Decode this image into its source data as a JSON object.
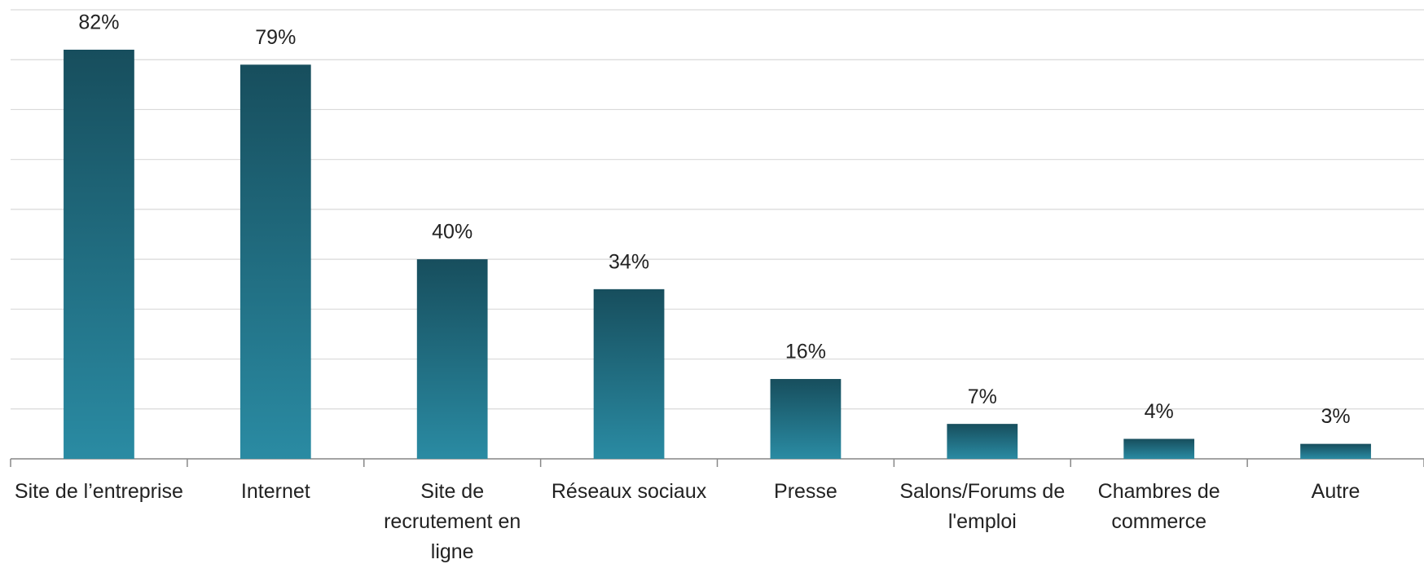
{
  "chart_data": {
    "type": "bar",
    "categories": [
      "Site de l’entreprise",
      "Internet",
      "Site de recrutement en ligne",
      "Réseaux sociaux",
      "Presse",
      "Salons/Forums de l'emploi",
      "Chambres de commerce",
      "Autre"
    ],
    "values": [
      82,
      79,
      40,
      34,
      16,
      7,
      4,
      3
    ],
    "value_labels": [
      "82%",
      "79%",
      "40%",
      "34%",
      "16%",
      "7%",
      "4%",
      "3%"
    ],
    "color": "#2a8ba3",
    "ylim": [
      0,
      90
    ],
    "yticks": [
      0,
      10,
      20,
      30,
      40,
      50,
      60,
      70,
      80,
      90
    ],
    "grid": true
  }
}
